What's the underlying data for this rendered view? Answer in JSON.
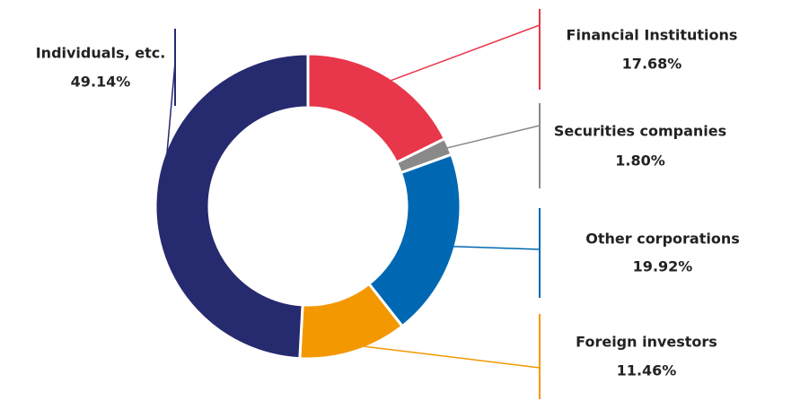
{
  "chart_data": {
    "type": "donut",
    "categories": [
      "Financial Institutions",
      "Securities companies",
      "Other corporations",
      "Foreign investors",
      "Individuals, etc."
    ],
    "values": [
      17.68,
      1.8,
      19.92,
      11.46,
      49.14
    ],
    "value_labels": [
      "17.68%",
      "1.80%",
      "19.92%",
      "11.46%",
      "49.14%"
    ],
    "colors": [
      "#e8374a",
      "#898989",
      "#0068b3",
      "#f39800",
      "#262a6f"
    ]
  }
}
